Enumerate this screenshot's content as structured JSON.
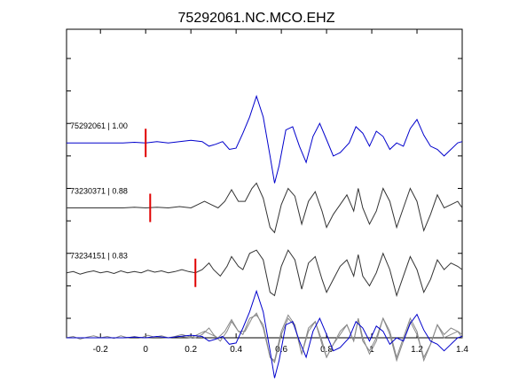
{
  "chart_data": {
    "type": "line",
    "title": "75292061.NC.MCO.EHZ",
    "xlabel": "",
    "ylabel": "",
    "xlim": [
      -0.35,
      1.4
    ],
    "xticks": [
      -0.2,
      0,
      0.2,
      0.4,
      0.6,
      0.8,
      1,
      1.2,
      1.4
    ],
    "xtick_labels": [
      "-0.2",
      "0",
      "0.2",
      "0.4",
      "0.6",
      "0.8",
      "1",
      "1.2",
      "1.4"
    ],
    "yticks": [
      1.3,
      0.8,
      0.3,
      -0.2,
      -0.7,
      -1.2,
      -1.7,
      -2.2,
      -2.7
    ],
    "ylim": [
      -3.0,
      1.75
    ],
    "grid": false,
    "pick_color": "#e00000",
    "traces": [
      {
        "label": "75292061 | 1.00",
        "id": "75292061",
        "correlation": 1.0,
        "offset": 0,
        "pick_time": 0.0,
        "color": "#0000cc",
        "points": [
          [
            -0.35,
            0.0
          ],
          [
            -0.3,
            0.0
          ],
          [
            -0.25,
            0.0
          ],
          [
            -0.2,
            0.0
          ],
          [
            -0.15,
            0.0
          ],
          [
            -0.1,
            0.0
          ],
          [
            -0.05,
            0.01
          ],
          [
            0.0,
            0.0
          ],
          [
            0.05,
            0.02
          ],
          [
            0.1,
            0.0
          ],
          [
            0.15,
            0.02
          ],
          [
            0.2,
            0.04
          ],
          [
            0.25,
            0.02
          ],
          [
            0.28,
            -0.05
          ],
          [
            0.31,
            -0.02
          ],
          [
            0.34,
            0.02
          ],
          [
            0.37,
            -0.1
          ],
          [
            0.4,
            -0.08
          ],
          [
            0.43,
            0.15
          ],
          [
            0.46,
            0.4
          ],
          [
            0.49,
            0.72
          ],
          [
            0.52,
            0.4
          ],
          [
            0.55,
            -0.2
          ],
          [
            0.57,
            -0.62
          ],
          [
            0.59,
            -0.35
          ],
          [
            0.62,
            0.2
          ],
          [
            0.65,
            0.25
          ],
          [
            0.68,
            -0.05
          ],
          [
            0.71,
            -0.3
          ],
          [
            0.74,
            0.1
          ],
          [
            0.77,
            0.3
          ],
          [
            0.8,
            0.05
          ],
          [
            0.83,
            -0.2
          ],
          [
            0.86,
            -0.15
          ],
          [
            0.9,
            0.0
          ],
          [
            0.93,
            0.25
          ],
          [
            0.96,
            0.15
          ],
          [
            0.99,
            -0.05
          ],
          [
            1.02,
            0.18
          ],
          [
            1.05,
            0.1
          ],
          [
            1.08,
            -0.1
          ],
          [
            1.11,
            0.0
          ],
          [
            1.14,
            -0.05
          ],
          [
            1.17,
            0.22
          ],
          [
            1.2,
            0.36
          ],
          [
            1.23,
            0.12
          ],
          [
            1.26,
            -0.05
          ],
          [
            1.29,
            -0.1
          ],
          [
            1.32,
            -0.2
          ],
          [
            1.35,
            -0.1
          ],
          [
            1.38,
            0.0
          ],
          [
            1.4,
            0.02
          ]
        ]
      },
      {
        "label": "73230371 | 0.88",
        "id": "73230371",
        "correlation": 0.88,
        "offset": -1,
        "pick_time": 0.02,
        "color": "#333333",
        "points": [
          [
            -0.35,
            0.0
          ],
          [
            -0.3,
            0.0
          ],
          [
            -0.25,
            0.0
          ],
          [
            -0.2,
            0.0
          ],
          [
            -0.15,
            0.0
          ],
          [
            -0.1,
            0.0
          ],
          [
            -0.05,
            0.01
          ],
          [
            0.0,
            0.0
          ],
          [
            0.05,
            0.01
          ],
          [
            0.1,
            0.0
          ],
          [
            0.15,
            0.02
          ],
          [
            0.2,
            0.0
          ],
          [
            0.23,
            0.05
          ],
          [
            0.26,
            0.1
          ],
          [
            0.29,
            0.05
          ],
          [
            0.32,
            0.0
          ],
          [
            0.35,
            0.1
          ],
          [
            0.38,
            0.28
          ],
          [
            0.41,
            0.1
          ],
          [
            0.44,
            0.1
          ],
          [
            0.47,
            0.3
          ],
          [
            0.49,
            0.38
          ],
          [
            0.52,
            0.15
          ],
          [
            0.55,
            -0.3
          ],
          [
            0.57,
            -0.38
          ],
          [
            0.6,
            0.05
          ],
          [
            0.63,
            0.3
          ],
          [
            0.66,
            0.18
          ],
          [
            0.69,
            -0.25
          ],
          [
            0.72,
            0.1
          ],
          [
            0.75,
            0.25
          ],
          [
            0.78,
            -0.05
          ],
          [
            0.8,
            -0.3
          ],
          [
            0.83,
            -0.1
          ],
          [
            0.86,
            0.05
          ],
          [
            0.89,
            0.2
          ],
          [
            0.92,
            -0.05
          ],
          [
            0.94,
            0.3
          ],
          [
            0.96,
            0.0
          ],
          [
            0.99,
            -0.25
          ],
          [
            1.02,
            -0.05
          ],
          [
            1.05,
            0.3
          ],
          [
            1.08,
            0.1
          ],
          [
            1.11,
            -0.3
          ],
          [
            1.14,
            0.0
          ],
          [
            1.17,
            0.3
          ],
          [
            1.2,
            0.1
          ],
          [
            1.23,
            -0.35
          ],
          [
            1.26,
            -0.1
          ],
          [
            1.29,
            0.2
          ],
          [
            1.32,
            0.0
          ],
          [
            1.35,
            0.05
          ],
          [
            1.38,
            0.1
          ],
          [
            1.4,
            0.0
          ]
        ]
      },
      {
        "label": "73234151 | 0.83",
        "id": "73234151",
        "correlation": 0.83,
        "offset": -2,
        "pick_time": 0.22,
        "color": "#333333",
        "points": [
          [
            -0.35,
            0.0
          ],
          [
            -0.32,
            0.02
          ],
          [
            -0.29,
            -0.02
          ],
          [
            -0.26,
            0.01
          ],
          [
            -0.23,
            0.03
          ],
          [
            -0.2,
            0.0
          ],
          [
            -0.17,
            0.02
          ],
          [
            -0.14,
            -0.01
          ],
          [
            -0.11,
            0.03
          ],
          [
            -0.08,
            0.0
          ],
          [
            -0.05,
            0.02
          ],
          [
            -0.02,
            0.0
          ],
          [
            0.01,
            0.04
          ],
          [
            0.04,
            0.01
          ],
          [
            0.07,
            0.03
          ],
          [
            0.1,
            0.0
          ],
          [
            0.13,
            0.02
          ],
          [
            0.16,
            0.05
          ],
          [
            0.19,
            0.02
          ],
          [
            0.22,
            0.0
          ],
          [
            0.25,
            0.05
          ],
          [
            0.28,
            0.15
          ],
          [
            0.3,
            0.05
          ],
          [
            0.33,
            -0.05
          ],
          [
            0.36,
            0.1
          ],
          [
            0.38,
            0.25
          ],
          [
            0.41,
            0.1
          ],
          [
            0.43,
            0.05
          ],
          [
            0.46,
            0.3
          ],
          [
            0.49,
            0.35
          ],
          [
            0.52,
            0.2
          ],
          [
            0.55,
            -0.3
          ],
          [
            0.57,
            -0.35
          ],
          [
            0.6,
            0.1
          ],
          [
            0.63,
            0.35
          ],
          [
            0.66,
            0.2
          ],
          [
            0.69,
            -0.25
          ],
          [
            0.72,
            0.15
          ],
          [
            0.75,
            0.25
          ],
          [
            0.78,
            -0.1
          ],
          [
            0.8,
            -0.3
          ],
          [
            0.83,
            -0.1
          ],
          [
            0.86,
            0.1
          ],
          [
            0.89,
            0.2
          ],
          [
            0.92,
            -0.05
          ],
          [
            0.94,
            0.28
          ],
          [
            0.96,
            -0.05
          ],
          [
            0.99,
            -0.2
          ],
          [
            1.02,
            0.0
          ],
          [
            1.05,
            0.3
          ],
          [
            1.08,
            0.05
          ],
          [
            1.11,
            -0.35
          ],
          [
            1.14,
            -0.05
          ],
          [
            1.17,
            0.25
          ],
          [
            1.2,
            0.05
          ],
          [
            1.23,
            -0.3
          ],
          [
            1.26,
            -0.1
          ],
          [
            1.29,
            0.2
          ],
          [
            1.32,
            0.05
          ],
          [
            1.35,
            0.15
          ],
          [
            1.38,
            0.1
          ],
          [
            1.4,
            0.05
          ]
        ]
      }
    ],
    "overlay": {
      "offset": -3,
      "series": [
        {
          "ref": 0,
          "color": "#0000cc"
        },
        {
          "ref": 1,
          "color": "#888888"
        },
        {
          "ref": 2,
          "color": "#888888"
        }
      ]
    }
  }
}
